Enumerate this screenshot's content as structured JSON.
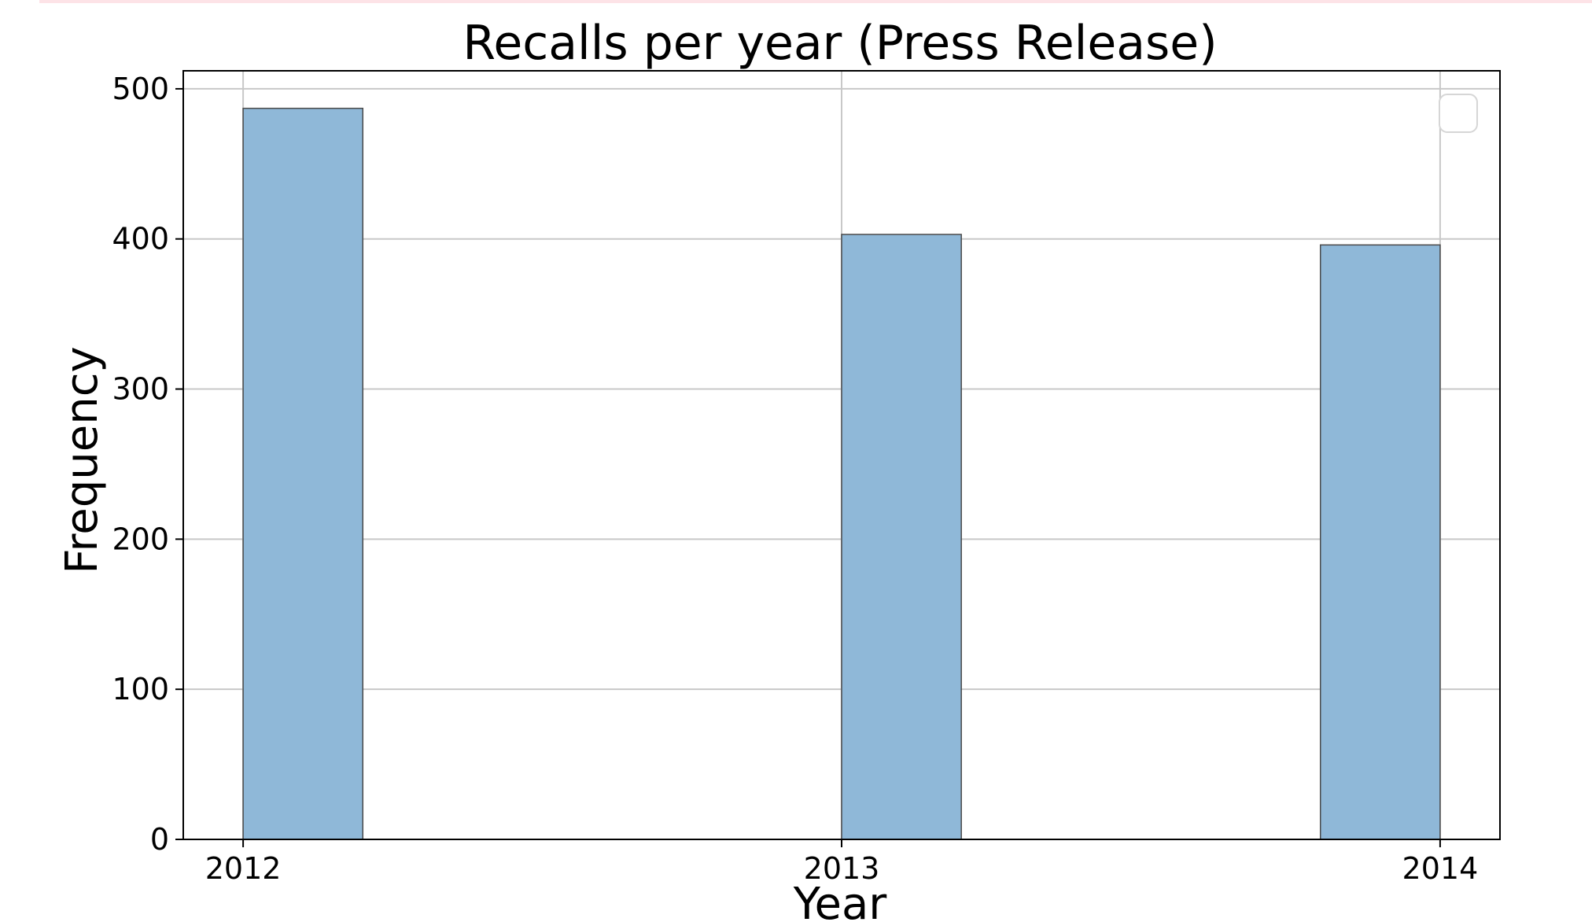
{
  "chart_data": {
    "type": "bar",
    "title": "Recalls per year (Press Release)",
    "xlabel": "Year",
    "ylabel": "Frequency",
    "x_tick_labels": [
      "2012",
      "2013",
      "2014"
    ],
    "y_tick_labels": [
      "0",
      "100",
      "200",
      "300",
      "400",
      "500"
    ],
    "xlim": [
      2011.9,
      2014.1
    ],
    "ylim": [
      0,
      512
    ],
    "bins": [
      {
        "start": 2012.0,
        "end": 2012.2,
        "value": 487
      },
      {
        "start": 2013.0,
        "end": 2013.2,
        "value": 403
      },
      {
        "start": 2013.8,
        "end": 2014.0,
        "value": 396
      }
    ],
    "bar_color": "#8fb8d8",
    "bar_edge_color": "#4a4a4a",
    "grid": true,
    "legend": {
      "placement": "top-right",
      "entries": []
    }
  }
}
